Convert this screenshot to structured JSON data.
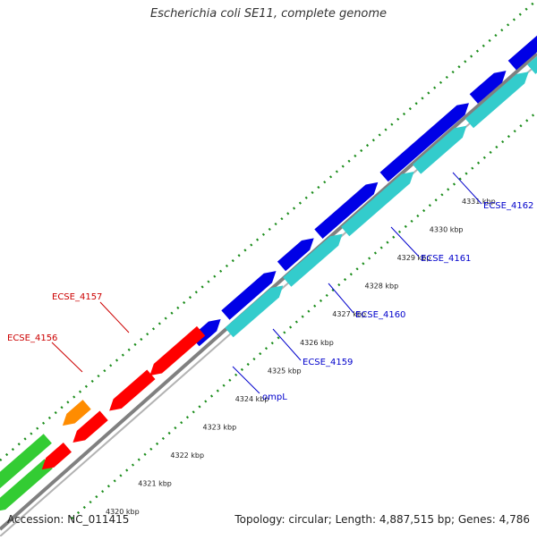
{
  "title": "Escherichia coli SE11, complete genome",
  "footer": {
    "accession": "Accession: NC_011415",
    "summary": "Topology: circular; Length: 4,887,515 bp; Genes: 4,786"
  },
  "colors": {
    "backbone": "#808080",
    "forward_cds": "#0000e6",
    "forward_cds_alt": "#33cccc",
    "reverse_cds": "#ff0000",
    "reverse_rna": "#ff8c00",
    "reverse_other": "#33cc33",
    "tick_dots": "#1a8c1a",
    "label_forward": "#0000cc",
    "label_reverse": "#cc0000"
  },
  "scale_ticks": [
    {
      "label": "4320 kbp"
    },
    {
      "label": "4321 kbp"
    },
    {
      "label": "4322 kbp"
    },
    {
      "label": "4323 kbp"
    },
    {
      "label": "4324 kbp"
    },
    {
      "label": "4325 kbp"
    },
    {
      "label": "4326 kbp"
    },
    {
      "label": "4327 kbp"
    },
    {
      "label": "4328 kbp"
    },
    {
      "label": "4329 kbp"
    },
    {
      "label": "4330 kbp"
    },
    {
      "label": "4331 kbp"
    }
  ],
  "feature_labels": [
    {
      "text": "ompL",
      "strand": "forward"
    },
    {
      "text": "ECSE_4159",
      "strand": "forward"
    },
    {
      "text": "ECSE_4160",
      "strand": "forward"
    },
    {
      "text": "ECSE_4161",
      "strand": "forward"
    },
    {
      "text": "ECSE_4162",
      "strand": "forward"
    },
    {
      "text": "ECSE_4157",
      "strand": "reverse"
    },
    {
      "text": "ECSE_4156",
      "strand": "reverse"
    }
  ]
}
